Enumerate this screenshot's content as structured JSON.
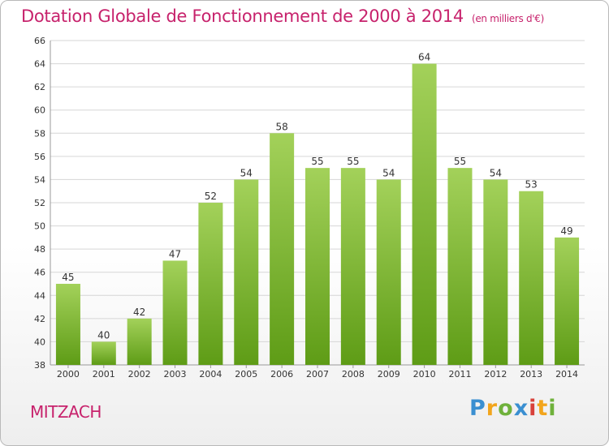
{
  "header": {
    "title": "Dotation Globale de Fonctionnement de 2000 à 2014",
    "unit": "(en milliers d'€)"
  },
  "footer": {
    "commune": "MITZACH",
    "brand_letters": [
      "P",
      "r",
      "o",
      "x",
      "i",
      "t",
      "i"
    ]
  },
  "colors": {
    "title": "#c7226c",
    "bar_top": "#a3d15a",
    "bar_bottom": "#5e9c16",
    "grid": "#d6d6d6"
  },
  "chart_data": {
    "type": "bar",
    "title": "Dotation Globale de Fonctionnement de 2000 à 2014",
    "subtitle": "(en milliers d'€)",
    "xlabel": "",
    "ylabel": "",
    "categories": [
      "2000",
      "2001",
      "2002",
      "2003",
      "2004",
      "2005",
      "2006",
      "2007",
      "2008",
      "2009",
      "2010",
      "2011",
      "2012",
      "2013",
      "2014"
    ],
    "values": [
      45,
      40,
      42,
      47,
      52,
      54,
      58,
      55,
      55,
      54,
      64,
      55,
      54,
      53,
      49
    ],
    "ylim": [
      38,
      66
    ],
    "yticks": [
      38,
      40,
      42,
      44,
      46,
      48,
      50,
      52,
      54,
      56,
      58,
      60,
      62,
      64,
      66
    ],
    "grid": true,
    "legend": "none"
  }
}
